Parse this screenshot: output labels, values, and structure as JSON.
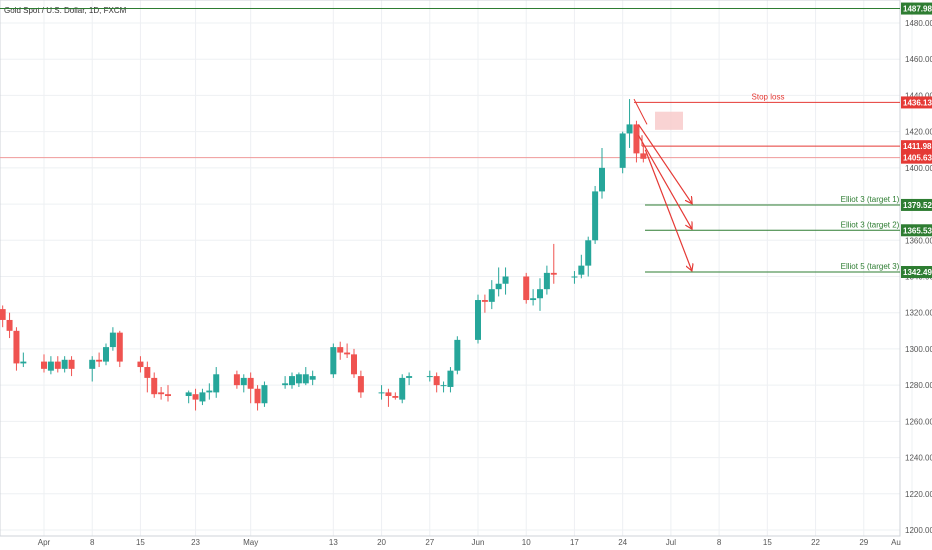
{
  "chart_data": {
    "type": "candlestick",
    "title": "Gold Spot / U.S. Dollar, 1D, FXCM",
    "colors": {
      "up": "#26a69a",
      "down": "#ef5350",
      "target": "#2e7d32",
      "stop": "#e53935",
      "axis": "#555555"
    },
    "y_range": [
      1200,
      1490
    ],
    "y_ticks": [
      1200,
      1220,
      1240,
      1260,
      1280,
      1300,
      1320,
      1340,
      1360,
      1380,
      1400,
      1420,
      1440,
      1460,
      1480
    ],
    "x_labels": [
      {
        "label": "Apr",
        "date": "2019-04-01"
      },
      {
        "label": "8",
        "date": "2019-04-08"
      },
      {
        "label": "15",
        "date": "2019-04-15"
      },
      {
        "label": "23",
        "date": "2019-04-23"
      },
      {
        "label": "May",
        "date": "2019-05-01"
      },
      {
        "label": "13",
        "date": "2019-05-13"
      },
      {
        "label": "20",
        "date": "2019-05-20"
      },
      {
        "label": "27",
        "date": "2019-05-27"
      },
      {
        "label": "Jun",
        "date": "2019-06-03"
      },
      {
        "label": "10",
        "date": "2019-06-10"
      },
      {
        "label": "17",
        "date": "2019-06-17"
      },
      {
        "label": "24",
        "date": "2019-06-24"
      },
      {
        "label": "Jul",
        "date": "2019-07-01"
      },
      {
        "label": "8",
        "date": "2019-07-08"
      },
      {
        "label": "15",
        "date": "2019-07-15"
      },
      {
        "label": "22",
        "date": "2019-07-22"
      },
      {
        "label": "29",
        "date": "2019-07-29"
      },
      {
        "label": "Au",
        "date": "2019-08-05"
      }
    ],
    "candles": [
      {
        "date": "2019-03-26",
        "o": 1322,
        "h": 1324,
        "l": 1312,
        "c": 1316
      },
      {
        "date": "2019-03-27",
        "o": 1316,
        "h": 1320,
        "l": 1306,
        "c": 1310
      },
      {
        "date": "2019-03-28",
        "o": 1310,
        "h": 1312,
        "l": 1288,
        "c": 1292
      },
      {
        "date": "2019-03-29",
        "o": 1292,
        "h": 1298,
        "l": 1290,
        "c": 1293
      },
      {
        "date": "2019-04-01",
        "o": 1293,
        "h": 1297,
        "l": 1287,
        "c": 1289
      },
      {
        "date": "2019-04-02",
        "o": 1288,
        "h": 1296,
        "l": 1286,
        "c": 1293
      },
      {
        "date": "2019-04-03",
        "o": 1293,
        "h": 1296,
        "l": 1287,
        "c": 1289
      },
      {
        "date": "2019-04-04",
        "o": 1289,
        "h": 1296,
        "l": 1287,
        "c": 1294
      },
      {
        "date": "2019-04-05",
        "o": 1294,
        "h": 1296,
        "l": 1285,
        "c": 1289
      },
      {
        "date": "2019-04-08",
        "o": 1289,
        "h": 1296,
        "l": 1282,
        "c": 1294
      },
      {
        "date": "2019-04-09",
        "o": 1294,
        "h": 1298,
        "l": 1290,
        "c": 1293
      },
      {
        "date": "2019-04-10",
        "o": 1293,
        "h": 1303,
        "l": 1291,
        "c": 1301
      },
      {
        "date": "2019-04-11",
        "o": 1301,
        "h": 1312,
        "l": 1299,
        "c": 1309
      },
      {
        "date": "2019-04-12",
        "o": 1309,
        "h": 1310,
        "l": 1290,
        "c": 1293
      },
      {
        "date": "2019-04-15",
        "o": 1293,
        "h": 1296,
        "l": 1287,
        "c": 1290
      },
      {
        "date": "2019-04-16",
        "o": 1290,
        "h": 1293,
        "l": 1276,
        "c": 1284
      },
      {
        "date": "2019-04-17",
        "o": 1284,
        "h": 1287,
        "l": 1273,
        "c": 1275
      },
      {
        "date": "2019-04-18",
        "o": 1276,
        "h": 1279,
        "l": 1272,
        "c": 1275
      },
      {
        "date": "2019-04-19",
        "o": 1275,
        "h": 1280,
        "l": 1271,
        "c": 1274
      },
      {
        "date": "2019-04-22",
        "o": 1274,
        "h": 1277,
        "l": 1270,
        "c": 1276
      },
      {
        "date": "2019-04-23",
        "o": 1275,
        "h": 1278,
        "l": 1266,
        "c": 1272
      },
      {
        "date": "2019-04-24",
        "o": 1271,
        "h": 1278,
        "l": 1269,
        "c": 1276
      },
      {
        "date": "2019-04-25",
        "o": 1276,
        "h": 1281,
        "l": 1272,
        "c": 1277
      },
      {
        "date": "2019-04-26",
        "o": 1276,
        "h": 1290,
        "l": 1273,
        "c": 1286
      },
      {
        "date": "2019-04-29",
        "o": 1286,
        "h": 1288,
        "l": 1278,
        "c": 1280
      },
      {
        "date": "2019-04-30",
        "o": 1280,
        "h": 1286,
        "l": 1276,
        "c": 1284
      },
      {
        "date": "2019-05-01",
        "o": 1284,
        "h": 1287,
        "l": 1270,
        "c": 1278
      },
      {
        "date": "2019-05-02",
        "o": 1278,
        "h": 1280,
        "l": 1266,
        "c": 1270
      },
      {
        "date": "2019-05-03",
        "o": 1270,
        "h": 1282,
        "l": 1268,
        "c": 1280
      },
      {
        "date": "2019-05-06",
        "o": 1280,
        "h": 1285,
        "l": 1278,
        "c": 1281
      },
      {
        "date": "2019-05-07",
        "o": 1280,
        "h": 1287,
        "l": 1278,
        "c": 1285
      },
      {
        "date": "2019-05-08",
        "o": 1281,
        "h": 1287,
        "l": 1279,
        "c": 1286
      },
      {
        "date": "2019-05-09",
        "o": 1281,
        "h": 1290,
        "l": 1280,
        "c": 1286
      },
      {
        "date": "2019-05-10",
        "o": 1283,
        "h": 1288,
        "l": 1280,
        "c": 1285
      },
      {
        "date": "2019-05-13",
        "o": 1286,
        "h": 1303,
        "l": 1284,
        "c": 1301
      },
      {
        "date": "2019-05-14",
        "o": 1301,
        "h": 1304,
        "l": 1294,
        "c": 1298
      },
      {
        "date": "2019-05-15",
        "o": 1298,
        "h": 1303,
        "l": 1295,
        "c": 1297
      },
      {
        "date": "2019-05-16",
        "o": 1297,
        "h": 1300,
        "l": 1284,
        "c": 1286
      },
      {
        "date": "2019-05-17",
        "o": 1285,
        "h": 1288,
        "l": 1273,
        "c": 1276
      },
      {
        "date": "2019-05-20",
        "o": 1276,
        "h": 1280,
        "l": 1272,
        "c": 1276
      },
      {
        "date": "2019-05-21",
        "o": 1276,
        "h": 1278,
        "l": 1268,
        "c": 1274
      },
      {
        "date": "2019-05-22",
        "o": 1274,
        "h": 1276,
        "l": 1272,
        "c": 1273
      },
      {
        "date": "2019-05-23",
        "o": 1272,
        "h": 1286,
        "l": 1270,
        "c": 1284
      },
      {
        "date": "2019-05-24",
        "o": 1284,
        "h": 1287,
        "l": 1280,
        "c": 1285
      },
      {
        "date": "2019-05-27",
        "o": 1285,
        "h": 1288,
        "l": 1282,
        "c": 1285
      },
      {
        "date": "2019-05-28",
        "o": 1285,
        "h": 1287,
        "l": 1276,
        "c": 1280
      },
      {
        "date": "2019-05-29",
        "o": 1280,
        "h": 1282,
        "l": 1276,
        "c": 1280
      },
      {
        "date": "2019-05-30",
        "o": 1279,
        "h": 1290,
        "l": 1276,
        "c": 1288
      },
      {
        "date": "2019-05-31",
        "o": 1288,
        "h": 1307,
        "l": 1286,
        "c": 1305
      },
      {
        "date": "2019-06-03",
        "o": 1305,
        "h": 1330,
        "l": 1303,
        "c": 1327
      },
      {
        "date": "2019-06-04",
        "o": 1327,
        "h": 1330,
        "l": 1320,
        "c": 1326
      },
      {
        "date": "2019-06-05",
        "o": 1326,
        "h": 1338,
        "l": 1322,
        "c": 1333
      },
      {
        "date": "2019-06-06",
        "o": 1333,
        "h": 1345,
        "l": 1329,
        "c": 1336
      },
      {
        "date": "2019-06-07",
        "o": 1336,
        "h": 1345,
        "l": 1330,
        "c": 1340
      },
      {
        "date": "2019-06-10",
        "o": 1340,
        "h": 1342,
        "l": 1325,
        "c": 1327
      },
      {
        "date": "2019-06-11",
        "o": 1327,
        "h": 1333,
        "l": 1324,
        "c": 1328
      },
      {
        "date": "2019-06-12",
        "o": 1328,
        "h": 1339,
        "l": 1321,
        "c": 1333
      },
      {
        "date": "2019-06-13",
        "o": 1333,
        "h": 1346,
        "l": 1330,
        "c": 1342
      },
      {
        "date": "2019-06-14",
        "o": 1342,
        "h": 1358,
        "l": 1336,
        "c": 1341
      },
      {
        "date": "2019-06-17",
        "o": 1340,
        "h": 1343,
        "l": 1336,
        "c": 1340
      },
      {
        "date": "2019-06-18",
        "o": 1341,
        "h": 1352,
        "l": 1339,
        "c": 1346
      },
      {
        "date": "2019-06-19",
        "o": 1346,
        "h": 1362,
        "l": 1340,
        "c": 1360
      },
      {
        "date": "2019-06-20",
        "o": 1360,
        "h": 1390,
        "l": 1358,
        "c": 1387
      },
      {
        "date": "2019-06-21",
        "o": 1387,
        "h": 1411,
        "l": 1383,
        "c": 1400
      },
      {
        "date": "2019-06-24",
        "o": 1400,
        "h": 1420,
        "l": 1397,
        "c": 1419
      },
      {
        "date": "2019-06-25",
        "o": 1419,
        "h": 1438,
        "l": 1411,
        "c": 1424
      },
      {
        "date": "2019-06-26",
        "o": 1424,
        "h": 1426,
        "l": 1403,
        "c": 1408
      },
      {
        "date": "2019-06-27",
        "o": 1408,
        "h": 1413,
        "l": 1403,
        "c": 1405
      }
    ],
    "levels": [
      {
        "price": 1487.98,
        "label": "",
        "badge": "1487.98",
        "kind": "target"
      },
      {
        "price": 1436.13,
        "label": "Stop loss",
        "badge": "1436.13",
        "kind": "stop"
      },
      {
        "price": 1411.98,
        "label": "",
        "badge": "1411.98",
        "kind": "stop"
      },
      {
        "price": 1405.63,
        "label": "",
        "badge": "1405.63",
        "kind": "price"
      },
      {
        "price": 1379.52,
        "label": "Elliot 3 (target 1)",
        "badge": "1379.52",
        "kind": "target"
      },
      {
        "price": 1365.53,
        "label": "Elliot 3 (target 2)",
        "badge": "1365.53",
        "kind": "target"
      },
      {
        "price": 1342.49,
        "label": "Elliot 5 (target 3)",
        "badge": "1342.49",
        "kind": "target"
      }
    ],
    "projection_arrows": [
      {
        "from": {
          "date": "2019-06-26",
          "price": 1424
        },
        "to": {
          "date": "2019-07-04",
          "price": 1379.52
        }
      },
      {
        "from": {
          "date": "2019-06-26",
          "price": 1418
        },
        "to": {
          "date": "2019-07-04",
          "price": 1365.53
        }
      },
      {
        "from": {
          "date": "2019-06-27",
          "price": 1410
        },
        "to": {
          "date": "2019-07-04",
          "price": 1342.49
        }
      }
    ]
  }
}
